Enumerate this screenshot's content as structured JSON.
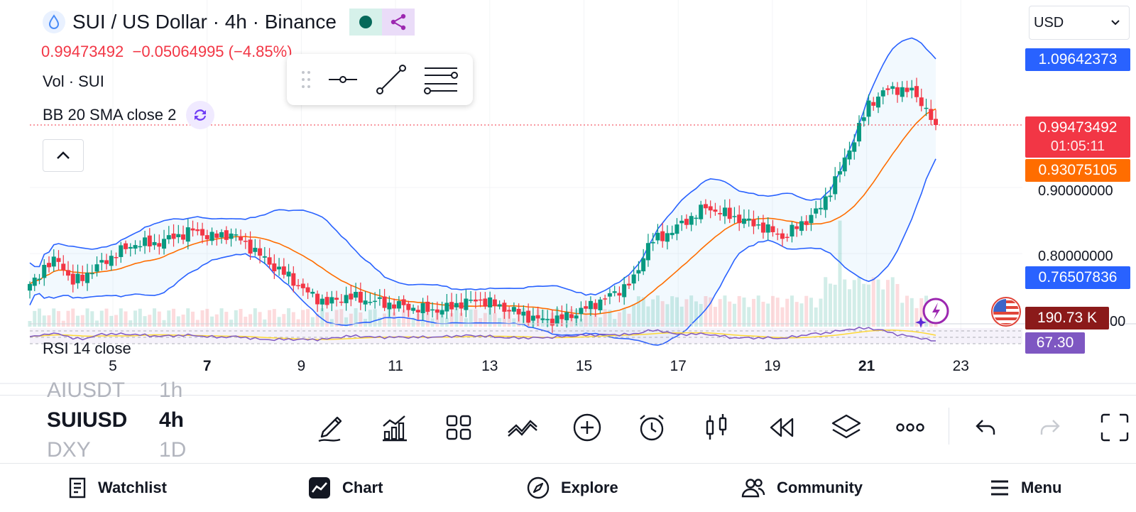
{
  "header": {
    "title": "SUI / US Dollar · 4h · Binance",
    "price": "0.99473492",
    "change": "−0.05064995 (−4.85%)"
  },
  "legends": {
    "volume": "Vol · SUI",
    "bb": "BB 20 SMA close 2",
    "rsi": "RSI 14 close"
  },
  "currency_select": "USD",
  "price_axis": {
    "labels": [
      "0.90000000",
      "0.80000000",
      "00"
    ],
    "tags": {
      "bb_upper": "1.09642373",
      "last_price": "0.99473492",
      "countdown": "01:05:11",
      "bb_basis": "0.93075105",
      "bb_lower": "0.76507836",
      "volume": "190.73 K",
      "rsi": "67.30"
    }
  },
  "time_axis": {
    "labels": [
      "5",
      "7",
      "9",
      "11",
      "13",
      "15",
      "17",
      "19",
      "21",
      "23"
    ],
    "bold": [
      "7",
      "21"
    ]
  },
  "symbol_picker": {
    "prev": {
      "symbol": "AIUSDT",
      "interval": "1h"
    },
    "current": {
      "symbol": "SUIUSD",
      "interval": "4h"
    },
    "next": {
      "symbol": "DXY",
      "interval": "1D"
    }
  },
  "toolbar": [
    "pencil-icon",
    "indicators-icon",
    "layout-icon",
    "compare-icon",
    "add-icon",
    "alert-icon",
    "chart-type-icon",
    "replay-icon",
    "layers-icon",
    "more-icon",
    "undo-icon",
    "redo-icon",
    "fullscreen-icon"
  ],
  "nav": {
    "watchlist": "Watchlist",
    "chart": "Chart",
    "explore": "Explore",
    "community": "Community",
    "menu": "Menu"
  },
  "colors": {
    "up": "#089981",
    "down": "#f23645",
    "bb_band": "#2962ff",
    "bb_basis": "#ff6d00",
    "rsi": "#7e57c2",
    "rsi_ma": "#fdd835",
    "tag_blue": "#2962ff",
    "tag_red": "#f23645",
    "tag_orange": "#ff6d00",
    "tag_vol": "#8b1a1a",
    "tag_rsi": "#7e57c2"
  },
  "chart_data": {
    "type": "candlestick",
    "symbol": "SUIUSD",
    "interval": "4h",
    "indicators": [
      "Vol",
      "BB 20 SMA close 2",
      "RSI 14 close"
    ],
    "last_price": 0.99473492,
    "bb_upper_last": 1.09642373,
    "bb_basis_last": 0.93075105,
    "bb_lower_last": 0.76507836,
    "volume_last": "190.73 K",
    "rsi_last": 67.3,
    "anchors": [
      [
        0,
        0.75
      ],
      [
        3,
        0.78
      ],
      [
        6,
        0.79
      ],
      [
        9,
        0.755
      ],
      [
        14,
        0.78
      ],
      [
        18,
        0.8
      ],
      [
        22,
        0.815
      ],
      [
        26,
        0.815
      ],
      [
        30,
        0.825
      ],
      [
        34,
        0.835
      ],
      [
        38,
        0.825
      ],
      [
        42,
        0.83
      ],
      [
        46,
        0.81
      ],
      [
        50,
        0.785
      ],
      [
        54,
        0.765
      ],
      [
        58,
        0.74
      ],
      [
        62,
        0.725
      ],
      [
        66,
        0.735
      ],
      [
        70,
        0.73
      ],
      [
        74,
        0.725
      ],
      [
        78,
        0.72
      ],
      [
        82,
        0.715
      ],
      [
        86,
        0.715
      ],
      [
        90,
        0.725
      ],
      [
        94,
        0.73
      ],
      [
        98,
        0.72
      ],
      [
        102,
        0.71
      ],
      [
        106,
        0.7
      ],
      [
        110,
        0.7
      ],
      [
        114,
        0.71
      ],
      [
        118,
        0.725
      ],
      [
        122,
        0.74
      ],
      [
        126,
        0.76
      ],
      [
        129,
        0.815
      ],
      [
        133,
        0.83
      ],
      [
        137,
        0.85
      ],
      [
        141,
        0.87
      ],
      [
        145,
        0.86
      ],
      [
        149,
        0.85
      ],
      [
        153,
        0.84
      ],
      [
        157,
        0.825
      ],
      [
        161,
        0.845
      ],
      [
        165,
        0.87
      ],
      [
        169,
        0.925
      ],
      [
        172,
        0.975
      ],
      [
        175,
        1.025
      ],
      [
        178,
        1.045
      ],
      [
        181,
        1.05
      ],
      [
        184,
        1.045
      ],
      [
        186,
        1.03
      ],
      [
        188,
        1.005
      ],
      [
        189,
        0.99473492
      ]
    ]
  }
}
